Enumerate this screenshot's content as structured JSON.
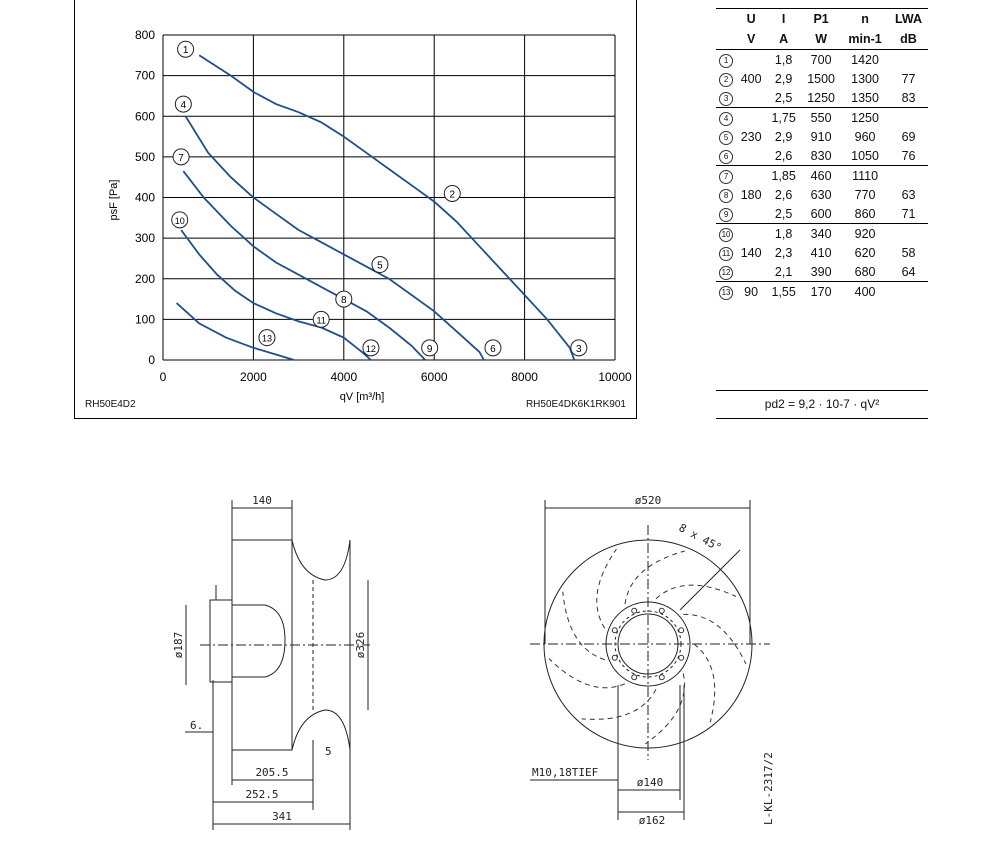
{
  "chart_data": {
    "type": "line",
    "xlabel": "qV [m³/h]",
    "ylabel": "psF [Pa]",
    "xlim": [
      0,
      10000
    ],
    "ylim": [
      0,
      800
    ],
    "x_ticks": [
      "0",
      "2000",
      "4000",
      "6000",
      "8000",
      "10000"
    ],
    "y_ticks": [
      "0",
      "100",
      "200",
      "300",
      "400",
      "500",
      "600",
      "700",
      "800"
    ],
    "grid": true,
    "series": [
      {
        "name": "1",
        "x": [
          800,
          1500,
          2000,
          2500,
          3000
        ],
        "y": [
          750,
          700,
          660,
          630,
          610
        ]
      },
      {
        "name": "2",
        "x": [
          3000,
          3500,
          4000,
          4500,
          5000,
          5500,
          6000
        ],
        "y": [
          610,
          585,
          550,
          510,
          470,
          430,
          390
        ]
      },
      {
        "name": "3",
        "x": [
          6000,
          6500,
          7000,
          7500,
          8000,
          8500,
          9000,
          9100
        ],
        "y": [
          390,
          340,
          280,
          220,
          160,
          100,
          30,
          0
        ]
      },
      {
        "name": "4",
        "x": [
          500,
          1000,
          1500,
          2000,
          2500,
          3000
        ],
        "y": [
          600,
          510,
          450,
          400,
          360,
          320
        ]
      },
      {
        "name": "5",
        "x": [
          3000,
          3500,
          4000,
          4500,
          5000
        ],
        "y": [
          320,
          290,
          260,
          230,
          200
        ]
      },
      {
        "name": "6",
        "x": [
          5000,
          5500,
          6000,
          6500,
          7000,
          7100
        ],
        "y": [
          200,
          160,
          120,
          70,
          20,
          0
        ]
      },
      {
        "name": "7",
        "x": [
          450,
          900,
          1500,
          2000,
          2500,
          3000
        ],
        "y": [
          465,
          400,
          330,
          280,
          240,
          210
        ]
      },
      {
        "name": "8",
        "x": [
          3000,
          3500,
          4000
        ],
        "y": [
          210,
          180,
          150
        ]
      },
      {
        "name": "9",
        "x": [
          4000,
          4500,
          5000,
          5500,
          5800
        ],
        "y": [
          150,
          120,
          80,
          35,
          0
        ]
      },
      {
        "name": "10",
        "x": [
          400,
          800,
          1200,
          1600,
          2000,
          2500
        ],
        "y": [
          320,
          260,
          210,
          170,
          140,
          115
        ]
      },
      {
        "name": "11",
        "x": [
          2500,
          3000,
          3500
        ],
        "y": [
          115,
          95,
          80
        ]
      },
      {
        "name": "12",
        "x": [
          3500,
          4000,
          4400,
          4600
        ],
        "y": [
          80,
          55,
          20,
          0
        ]
      },
      {
        "name": "13",
        "x": [
          300,
          800,
          1400,
          2000,
          2600,
          2900
        ],
        "y": [
          140,
          90,
          55,
          30,
          10,
          0
        ]
      }
    ],
    "curve_labels": [
      {
        "n": "1",
        "x": 500,
        "y": 765
      },
      {
        "n": "4",
        "x": 450,
        "y": 630
      },
      {
        "n": "7",
        "x": 400,
        "y": 500
      },
      {
        "n": "10",
        "x": 370,
        "y": 345
      },
      {
        "n": "2",
        "x": 6400,
        "y": 410
      },
      {
        "n": "5",
        "x": 4800,
        "y": 235
      },
      {
        "n": "8",
        "x": 4000,
        "y": 150
      },
      {
        "n": "11",
        "x": 3500,
        "y": 100
      },
      {
        "n": "13",
        "x": 2300,
        "y": 55
      },
      {
        "n": "12",
        "x": 4600,
        "y": 30
      },
      {
        "n": "9",
        "x": 5900,
        "y": 30
      },
      {
        "n": "6",
        "x": 7300,
        "y": 30
      },
      {
        "n": "3",
        "x": 9200,
        "y": 30
      }
    ]
  },
  "chart_footer_left": "RH50E4D2",
  "chart_footer_right": "RH50E4DK6K1RK901",
  "table": {
    "headers": [
      "U",
      "I",
      "P1",
      "n",
      "LWA"
    ],
    "units": [
      "V",
      "A",
      "W",
      "min-1",
      "dB"
    ],
    "rows": [
      {
        "n": "1",
        "U": "",
        "I": "1,8",
        "P": "700",
        "rpm": "1420",
        "L": ""
      },
      {
        "n": "2",
        "U": "400",
        "I": "2,9",
        "P": "1500",
        "rpm": "1300",
        "L": "77"
      },
      {
        "n": "3",
        "U": "",
        "I": "2,5",
        "P": "1250",
        "rpm": "1350",
        "L": "83"
      },
      {
        "n": "4",
        "U": "",
        "I": "1,75",
        "P": "550",
        "rpm": "1250",
        "L": ""
      },
      {
        "n": "5",
        "U": "230",
        "I": "2,9",
        "P": "910",
        "rpm": "960",
        "L": "69"
      },
      {
        "n": "6",
        "U": "",
        "I": "2,6",
        "P": "830",
        "rpm": "1050",
        "L": "76"
      },
      {
        "n": "7",
        "U": "",
        "I": "1,85",
        "P": "460",
        "rpm": "1110",
        "L": ""
      },
      {
        "n": "8",
        "U": "180",
        "I": "2,6",
        "P": "630",
        "rpm": "770",
        "L": "63"
      },
      {
        "n": "9",
        "U": "",
        "I": "2,5",
        "P": "600",
        "rpm": "860",
        "L": "71"
      },
      {
        "n": "10",
        "U": "",
        "I": "1,8",
        "P": "340",
        "rpm": "920",
        "L": ""
      },
      {
        "n": "11",
        "U": "140",
        "I": "2,3",
        "P": "410",
        "rpm": "620",
        "L": "58"
      },
      {
        "n": "12",
        "U": "",
        "I": "2,1",
        "P": "390",
        "rpm": "680",
        "L": "64"
      },
      {
        "n": "13",
        "U": "90",
        "I": "1,55",
        "P": "170",
        "rpm": "400",
        "L": ""
      }
    ]
  },
  "formula": "pd2 = 9,2 · 10-7 · qV²",
  "dims": {
    "d140top": "140",
    "d187": "ø187",
    "d326": "ø326",
    "d6": "6.",
    "d5": "5",
    "d2055": "205.5",
    "d2525": "252.5",
    "d341": "341",
    "d520": "ø520",
    "d8x45": "8 x 45°",
    "m10": "M10,18TIEF",
    "d140b": "ø140",
    "d162": "ø162",
    "docref": "L-KL-2317/2"
  }
}
